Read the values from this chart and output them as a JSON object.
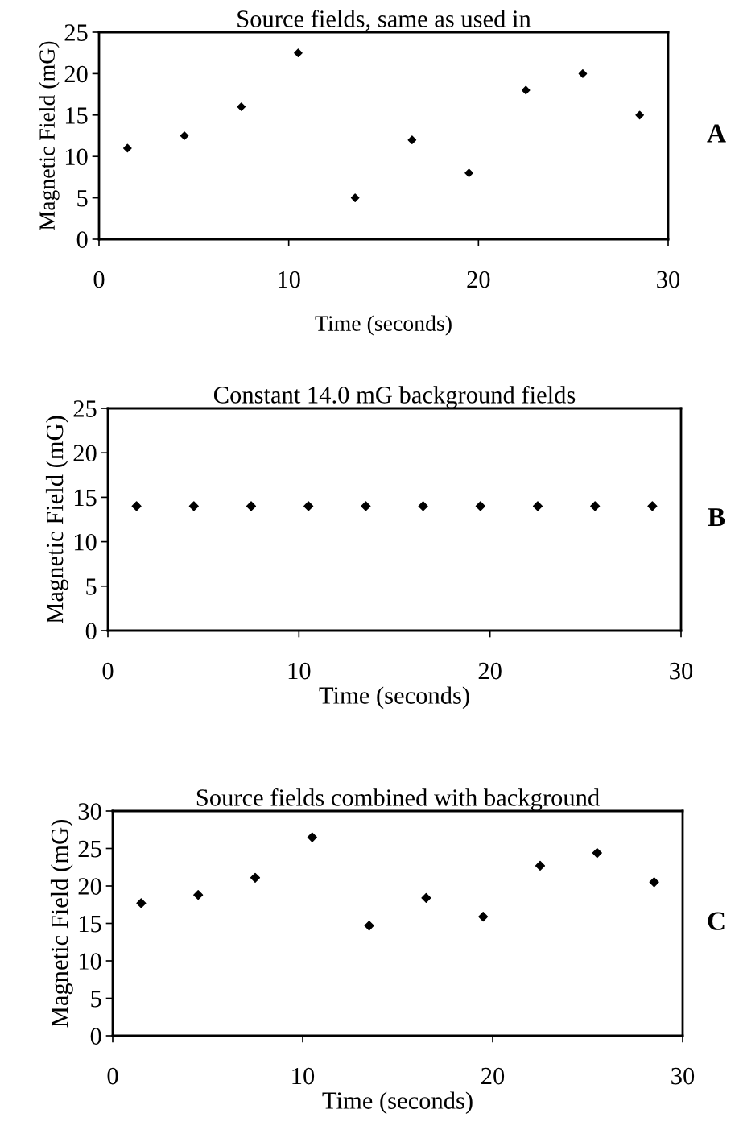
{
  "chart_data": [
    {
      "type": "scatter",
      "title": "Source fields, same as used in",
      "xlabel": "Time (seconds)",
      "ylabel": "Magnetic Field (mG)",
      "annotations": [
        "A"
      ],
      "x": [
        1.5,
        4.5,
        7.5,
        10.5,
        13.5,
        16.5,
        19.5,
        22.5,
        25.5,
        28.5
      ],
      "series": [
        {
          "color": "#000000",
          "values": [
            11,
            12.5,
            16,
            22.5,
            5,
            12,
            8,
            18,
            20,
            15
          ]
        }
      ],
      "xlim": [
        0,
        30
      ],
      "xticks": [
        0,
        10,
        20,
        30
      ],
      "ylim": [
        0,
        25
      ],
      "yticks": [
        0,
        5,
        10,
        15,
        20,
        25
      ],
      "marker": "diamond",
      "grid": false,
      "legend": false
    },
    {
      "type": "scatter",
      "title": "Constant 14.0 mG background fields",
      "xlabel": "Time (seconds)",
      "ylabel": "Magnetic Field (mG)",
      "annotations": [
        "B"
      ],
      "x": [
        1.5,
        4.5,
        7.5,
        10.5,
        13.5,
        16.5,
        19.5,
        22.5,
        25.5,
        28.5
      ],
      "series": [
        {
          "color": "#000000",
          "values": [
            14,
            14,
            14,
            14,
            14,
            14,
            14,
            14,
            14,
            14
          ]
        }
      ],
      "xlim": [
        0,
        30
      ],
      "xticks": [
        0,
        10,
        20,
        30
      ],
      "ylim": [
        0,
        25
      ],
      "yticks": [
        0,
        5,
        10,
        15,
        20,
        25
      ],
      "marker": "diamond",
      "grid": false,
      "legend": false
    },
    {
      "type": "scatter",
      "title": "Source fields combined with background",
      "xlabel": "Time (seconds)",
      "ylabel": "Magnetic Field (mG)",
      "annotations": [
        "C"
      ],
      "x": [
        1.5,
        4.5,
        7.5,
        10.5,
        13.5,
        16.5,
        19.5,
        22.5,
        25.5,
        28.5
      ],
      "series": [
        {
          "color": "#000000",
          "values": [
            17.7,
            18.8,
            21.1,
            26.5,
            14.7,
            18.4,
            15.9,
            22.7,
            24.4,
            20.5
          ]
        }
      ],
      "xlim": [
        0,
        30
      ],
      "xticks": [
        0,
        10,
        20,
        30
      ],
      "ylim": [
        0,
        30
      ],
      "yticks": [
        0,
        5,
        10,
        15,
        20,
        25,
        30
      ],
      "marker": "diamond",
      "grid": false,
      "legend": false
    }
  ]
}
